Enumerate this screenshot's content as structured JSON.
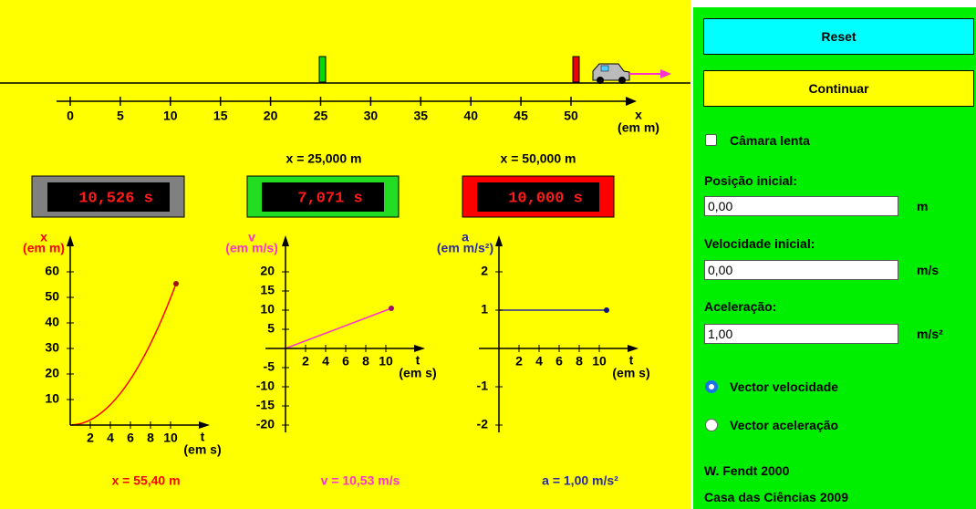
{
  "track": {
    "ruler_labels": [
      "0",
      "5",
      "10",
      "15",
      "20",
      "25",
      "30",
      "35",
      "40",
      "45",
      "50"
    ],
    "axis_label": "x",
    "axis_unit": "(em m)",
    "markers": [
      "x = 25,000 m",
      "x = 50,000 m"
    ]
  },
  "clocks": [
    "10,526 s",
    "7,071 s",
    "10,000 s"
  ],
  "graphs": [
    {
      "y_label": "x",
      "y_unit": "(em m)",
      "y_ticks": [
        "10",
        "20",
        "30",
        "40",
        "50",
        "60"
      ],
      "x_label": "t",
      "x_unit": "(em s)",
      "x_ticks": [
        "2",
        "4",
        "6",
        "8",
        "10"
      ],
      "readout": "x = 55,40 m"
    },
    {
      "y_label": "v",
      "y_unit": "(em m/s)",
      "y_ticks": [
        "20",
        "15",
        "10",
        "5",
        "-5",
        "-10",
        "-15",
        "-20"
      ],
      "x_label": "t",
      "x_unit": "(em s)",
      "x_ticks": [
        "2",
        "4",
        "6",
        "8",
        "10"
      ],
      "readout": "v = 10,53 m/s"
    },
    {
      "y_label": "a",
      "y_unit": "(em m/s²)",
      "y_ticks": [
        "2",
        "1",
        "-1",
        "-2"
      ],
      "x_label": "t",
      "x_unit": "(em s)",
      "x_ticks": [
        "2",
        "4",
        "6",
        "8",
        "10"
      ],
      "readout": "a = 1,00 m/s²"
    }
  ],
  "panel": {
    "reset": "Reset",
    "continue": "Continuar",
    "slow_motion": "Câmara lenta",
    "fields": [
      {
        "label": "Posição inicial:",
        "value": "0,00",
        "unit": "m"
      },
      {
        "label": "Velocidade inicial:",
        "value": "0,00",
        "unit": "m/s"
      },
      {
        "label": "Aceleração:",
        "value": "1,00",
        "unit": "m/s²"
      }
    ],
    "options": [
      "Vector velocidade",
      "Vector aceleração"
    ],
    "credits": [
      "W. Fendt 2000",
      "Casa das Ciências 2009"
    ]
  }
}
